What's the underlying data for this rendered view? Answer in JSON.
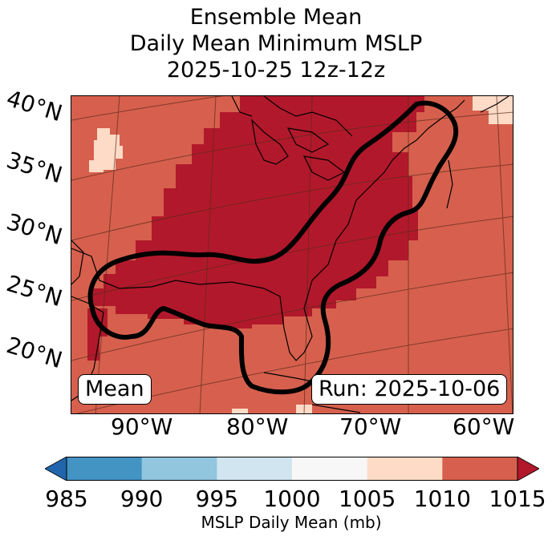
{
  "title": {
    "line1": "Ensemble Mean",
    "line2": "Daily Mean Minimum MSLP",
    "line3": "2025-10-25 12z-12z"
  },
  "map": {
    "latitude_labels": [
      "40°N",
      "35°N",
      "30°N",
      "25°N",
      "20°N"
    ],
    "longitude_labels": [
      "90°W",
      "80°W",
      "70°W",
      "60°W"
    ],
    "mean_label": "Mean",
    "run_label": "Run: 2025-10-06",
    "field_colors": {
      "1005-1010": "#fddbc7",
      "1010-1015": "#d6604d",
      "above-1015": "#b2182b"
    }
  },
  "colorbar": {
    "label": "MSLP Daily Mean (mb)",
    "ticks": [
      "985",
      "990",
      "995",
      "1000",
      "1005",
      "1010",
      "1015"
    ],
    "colors": [
      "#2166ac",
      "#4393c3",
      "#92c5de",
      "#d1e5f0",
      "#f7f7f7",
      "#fddbc7",
      "#d6604d",
      "#b2182b"
    ],
    "extend": "both"
  }
}
